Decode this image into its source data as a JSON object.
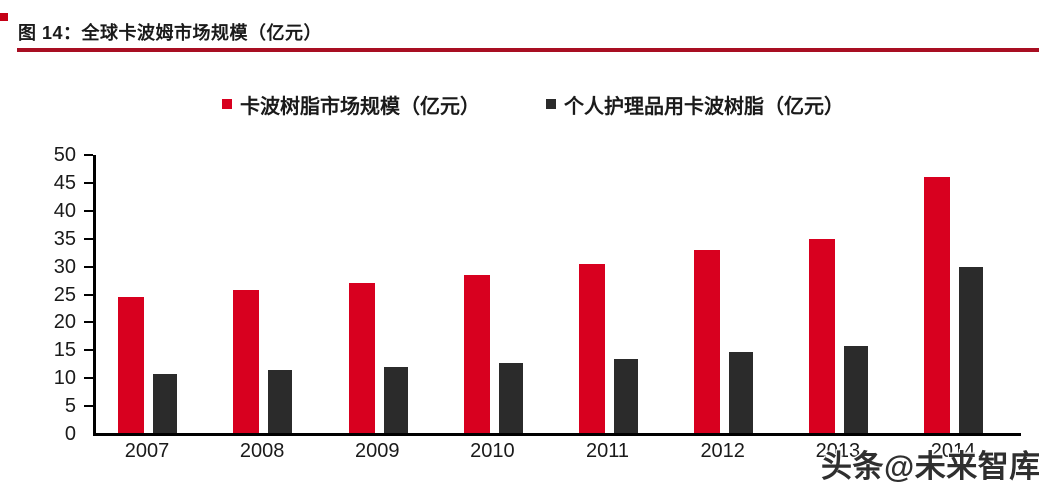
{
  "page": {
    "title": "图 14：全球卡波姆市场规模（亿元）",
    "watermark": "头条@未来智库"
  },
  "colors": {
    "series_red": "#d8001f",
    "series_dark": "#2b2b2b",
    "rule_red": "#a80e22",
    "corner_red": "#c40016",
    "axis_black": "#000000",
    "text": "#1a1a1a"
  },
  "chart_data": {
    "type": "bar",
    "title": "全球卡波姆市场规模（亿元）",
    "categories": [
      "2007",
      "2008",
      "2009",
      "2010",
      "2011",
      "2012",
      "2013",
      "2014"
    ],
    "series": [
      {
        "name": "卡波树脂市场规模（亿元）",
        "color": "#d8001f",
        "values": [
          24.5,
          25.8,
          27.0,
          28.5,
          30.5,
          33.0,
          35.0,
          46.0
        ]
      },
      {
        "name": "个人护理品用卡波树脂（亿元）",
        "color": "#2b2b2b",
        "values": [
          10.8,
          11.4,
          12.0,
          12.7,
          13.5,
          14.7,
          15.8,
          30.0
        ]
      }
    ],
    "xlabel": "",
    "ylabel": "",
    "ylim": [
      0,
      50
    ],
    "yticks": [
      0,
      5,
      10,
      15,
      20,
      25,
      30,
      35,
      40,
      45,
      50
    ],
    "grid": false,
    "legend_position": "top"
  }
}
